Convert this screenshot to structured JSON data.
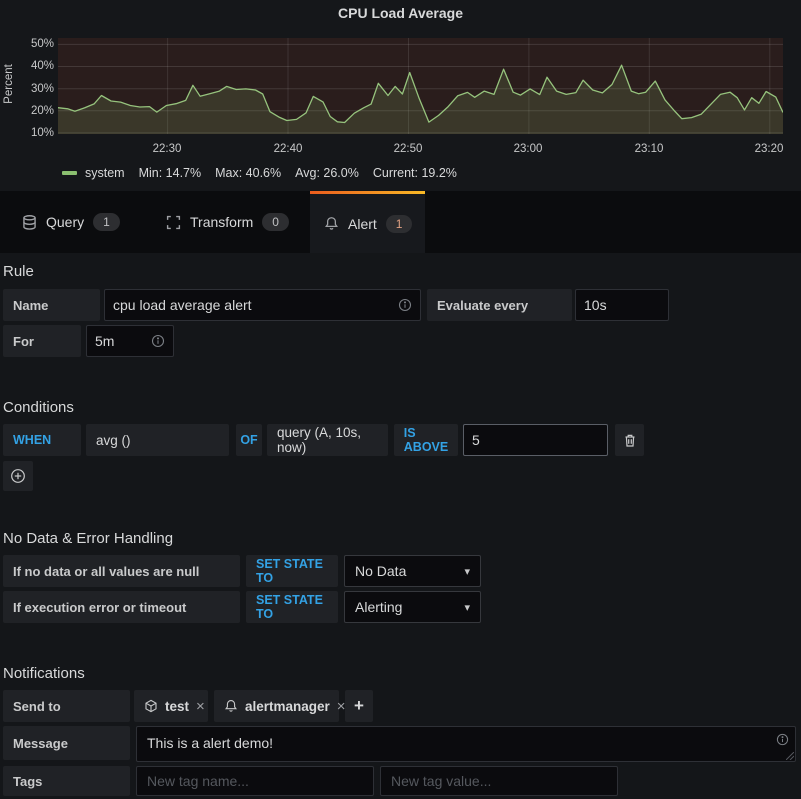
{
  "panel": {
    "title": "CPU Load Average",
    "legend": {
      "series_name": "system",
      "stats": [
        "Min: 14.7%",
        "Max: 40.6%",
        "Avg: 26.0%",
        "Current: 19.2%"
      ]
    }
  },
  "chart_data": {
    "type": "line",
    "title": "CPU Load Average",
    "ylabel": "Percent",
    "y_tick_labels": [
      "50%",
      "40%",
      "30%",
      "20%",
      "10%"
    ],
    "x_tick_labels": [
      "22:30",
      "22:40",
      "22:50",
      "23:00",
      "23:10",
      "23:20"
    ],
    "ylim": [
      9.5,
      52.9
    ],
    "y_gridlines": [
      10,
      20,
      30,
      40,
      50
    ],
    "x_range_minutes": 60.2,
    "x_gridlines_minutes": [
      9.1,
      19.1,
      29.1,
      39.1,
      49.1,
      59.1
    ],
    "grid": true,
    "legend_position": "bottom",
    "colors": {
      "line": "#96c37d",
      "area_fill": "rgba(140,190,110,0.16)",
      "plot_bg": "#2a1d1c"
    },
    "series": [
      {
        "name": "system",
        "unit": "%",
        "stats": {
          "min": 14.7,
          "max": 40.6,
          "avg": 26.0,
          "current": 19.2
        },
        "points": [
          [
            0,
            21.4
          ],
          [
            0.8,
            20.9
          ],
          [
            1.4,
            19.8
          ],
          [
            2.2,
            21.3
          ],
          [
            3,
            23.1
          ],
          [
            3.6,
            26.9
          ],
          [
            4.4,
            24.4
          ],
          [
            5.2,
            23.9
          ],
          [
            6,
            22.4
          ],
          [
            6.8,
            21.7
          ],
          [
            7.6,
            21.9
          ],
          [
            8.2,
            19.4
          ],
          [
            9,
            22.4
          ],
          [
            9.8,
            23.2
          ],
          [
            10.6,
            24.7
          ],
          [
            11.2,
            31.5
          ],
          [
            11.8,
            26.6
          ],
          [
            12.6,
            27.7
          ],
          [
            13.4,
            28.9
          ],
          [
            14,
            31
          ],
          [
            14.8,
            29.6
          ],
          [
            15.6,
            29.9
          ],
          [
            16.4,
            29.4
          ],
          [
            17,
            27.6
          ],
          [
            17.6,
            19.6
          ],
          [
            18.4,
            17
          ],
          [
            19,
            15.6
          ],
          [
            19.8,
            16.1
          ],
          [
            20.6,
            19.1
          ],
          [
            21.2,
            26.5
          ],
          [
            22,
            24
          ],
          [
            22.6,
            17.4
          ],
          [
            23.2,
            15
          ],
          [
            23.8,
            14.7
          ],
          [
            24.6,
            18.9
          ],
          [
            25.4,
            21.4
          ],
          [
            26,
            23
          ],
          [
            26.6,
            32.4
          ],
          [
            27.4,
            26.9
          ],
          [
            28,
            31
          ],
          [
            28.6,
            27.6
          ],
          [
            29.2,
            37.3
          ],
          [
            30,
            25.4
          ],
          [
            30.8,
            14.9
          ],
          [
            31.6,
            17.9
          ],
          [
            32.4,
            21.9
          ],
          [
            33.2,
            26.8
          ],
          [
            34,
            28.3
          ],
          [
            34.6,
            26.1
          ],
          [
            35.4,
            28.9
          ],
          [
            36.2,
            27.4
          ],
          [
            37,
            38.8
          ],
          [
            37.8,
            28.4
          ],
          [
            38.4,
            27.1
          ],
          [
            39.2,
            29.9
          ],
          [
            40,
            27.3
          ],
          [
            40.6,
            35.2
          ],
          [
            41.4,
            28.9
          ],
          [
            42.2,
            27.4
          ],
          [
            43,
            28.2
          ],
          [
            43.6,
            33.8
          ],
          [
            44.4,
            29.4
          ],
          [
            45.2,
            28.1
          ],
          [
            46,
            31.9
          ],
          [
            46.8,
            40.6
          ],
          [
            47.6,
            28.9
          ],
          [
            48.2,
            27.7
          ],
          [
            48.8,
            28.4
          ],
          [
            49.6,
            33.4
          ],
          [
            50.4,
            24.9
          ],
          [
            51.2,
            19.9
          ],
          [
            51.8,
            16.4
          ],
          [
            52.6,
            16.9
          ],
          [
            53.4,
            18.4
          ],
          [
            54.2,
            22.9
          ],
          [
            55,
            27.4
          ],
          [
            55.8,
            28.4
          ],
          [
            56.4,
            25.9
          ],
          [
            57,
            20.4
          ],
          [
            57.6,
            25.9
          ],
          [
            58.2,
            23.4
          ],
          [
            58.8,
            28.7
          ],
          [
            59.6,
            26.2
          ],
          [
            60.2,
            19.2
          ]
        ]
      }
    ]
  },
  "tabs": [
    {
      "label": "Query",
      "count": "1",
      "icon": "database-icon",
      "active": false
    },
    {
      "label": "Transform",
      "count": "0",
      "icon": "transform-icon",
      "active": false
    },
    {
      "label": "Alert",
      "count": "1",
      "icon": "bell-icon",
      "active": true
    }
  ],
  "rule": {
    "heading": "Rule",
    "name_label": "Name",
    "name_value": "cpu load average alert",
    "evaluate_label": "Evaluate every",
    "evaluate_value": "10s",
    "for_label": "For",
    "for_value": "5m"
  },
  "conditions": {
    "heading": "Conditions",
    "when": "WHEN",
    "aggregator": "avg ()",
    "of": "OF",
    "query": "query (A, 10s, now)",
    "operator": "IS ABOVE",
    "threshold": "5"
  },
  "no_data": {
    "heading": "No Data & Error Handling",
    "rows": [
      {
        "label": "If no data or all values are null",
        "action": "SET STATE TO",
        "value": "No Data"
      },
      {
        "label": "If execution error or timeout",
        "action": "SET STATE TO",
        "value": "Alerting"
      }
    ]
  },
  "notifications": {
    "heading": "Notifications",
    "send_to_label": "Send to",
    "recipients": [
      {
        "name": "test",
        "icon": "webhook-icon"
      },
      {
        "name": "alertmanager",
        "icon": "bell-icon"
      }
    ],
    "message_label": "Message",
    "message_value": "This is a alert demo!",
    "tags_label": "Tags",
    "tag_name_placeholder": "New tag name...",
    "tag_value_placeholder": "New tag value..."
  },
  "colors": {
    "accent_blue": "#33a2e5",
    "tab_gradient_left": "#eb5c1e",
    "tab_gradient_right": "#f9ba26",
    "series_green": "#8bc070"
  }
}
